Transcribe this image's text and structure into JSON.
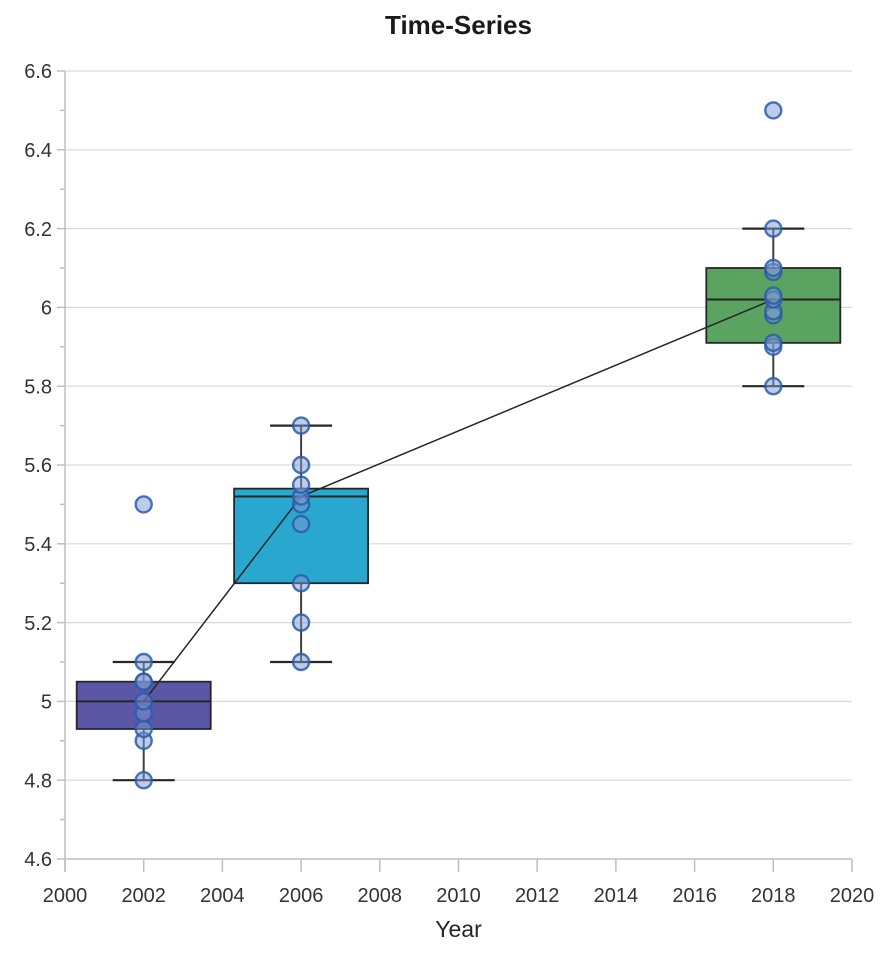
{
  "chart_data": {
    "type": "box",
    "title": "Time-Series",
    "xlabel": "Year",
    "xlim": [
      2000,
      2020
    ],
    "ylim": [
      4.6,
      6.6
    ],
    "x_tick_labels": [
      "2000",
      "2002",
      "2004",
      "2006",
      "2008",
      "2010",
      "2012",
      "2014",
      "2016",
      "2018",
      "2020"
    ],
    "y_tick_labels": [
      "4.6",
      "4.8",
      "5",
      "5.2",
      "5.4",
      "5.6",
      "5.8",
      "6",
      "6.2",
      "6.4",
      "6.6"
    ],
    "y_major_step": 0.2,
    "y_minor_step": 0.1,
    "grid": "horizontal-major-only",
    "legend": "none",
    "colors": {
      "grid": "#d9d9d9",
      "axis": "#bfbfbf",
      "tick_text": "#333333",
      "title_text": "#1a1a1a",
      "box_stroke": "#262626",
      "whisker": "#404040",
      "trend_line": "#262626",
      "point_fill": "#7c9ad1",
      "point_stroke": "#2a5caa"
    },
    "trend_line": "straight segments connecting the median of each box: (2002, 5.0) -> (2006, 5.52) -> (2018, 6.02)",
    "groups": [
      {
        "x": 2002,
        "box_color": "#5a57a7",
        "whisker_low": 4.8,
        "q1": 4.93,
        "median": 5.0,
        "q3": 5.05,
        "whisker_high": 5.1,
        "outliers": [
          5.5
        ],
        "points": [
          4.8,
          4.9,
          4.93,
          4.97,
          5.0,
          5.05,
          5.05,
          5.1,
          5.5
        ]
      },
      {
        "x": 2006,
        "box_color": "#2aa7cf",
        "whisker_low": 5.1,
        "q1": 5.3,
        "median": 5.52,
        "q3": 5.54,
        "whisker_high": 5.7,
        "outliers": [],
        "points": [
          5.1,
          5.2,
          5.3,
          5.45,
          5.5,
          5.52,
          5.55,
          5.6,
          5.7
        ]
      },
      {
        "x": 2018,
        "box_color": "#5ba360",
        "whisker_low": 5.8,
        "q1": 5.91,
        "median": 6.02,
        "q3": 6.1,
        "whisker_high": 6.2,
        "outliers": [
          6.5
        ],
        "points": [
          5.8,
          5.9,
          5.91,
          5.98,
          5.99,
          6.02,
          6.03,
          6.09,
          6.1,
          6.2,
          6.5
        ]
      }
    ]
  }
}
